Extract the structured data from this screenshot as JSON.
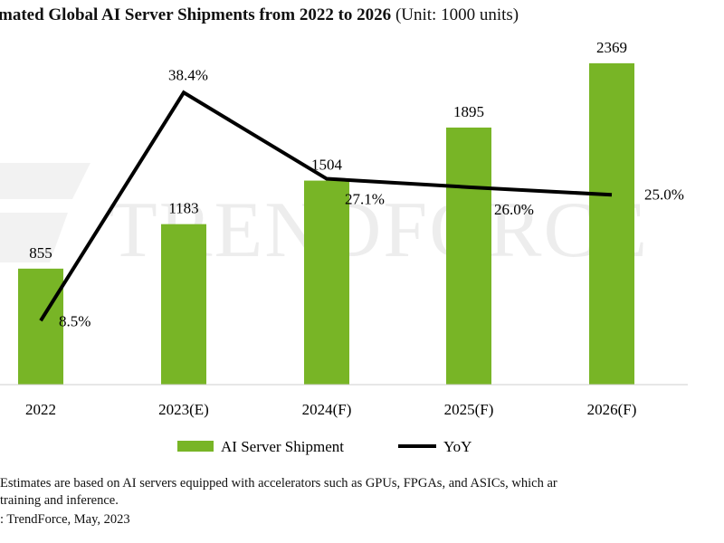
{
  "chart_data": {
    "type": "bar+line",
    "title": "mated Global AI Server Shipments from 2022 to 2026",
    "title_unit": "(Unit: 1000 units)",
    "categories": [
      "2022",
      "2023(E)",
      "2024(F)",
      "2025(F)",
      "2026(F)"
    ],
    "series": [
      {
        "name": "AI Server Shipment",
        "type": "bar",
        "color": "#78b526",
        "values": [
          855,
          1183,
          1504,
          1895,
          2369
        ],
        "labels": [
          "855",
          "1183",
          "1504",
          "1895",
          "2369"
        ]
      },
      {
        "name": "YoY",
        "type": "line",
        "color": "#000000",
        "values": [
          8.5,
          38.4,
          27.1,
          26.0,
          25.0
        ],
        "labels": [
          "8.5%",
          "38.4%",
          "27.1%",
          "26.0%",
          "25.0%"
        ]
      }
    ],
    "legend": "bottom",
    "grid": false,
    "watermark": "TRENDFORCE"
  },
  "notes": {
    "line1": " Estimates are based on AI servers equipped with accelerators such as GPUs, FPGAs, and ASICs, which ar",
    "line2": "training and inference.",
    "source": ": TrendForce, May, 2023"
  }
}
